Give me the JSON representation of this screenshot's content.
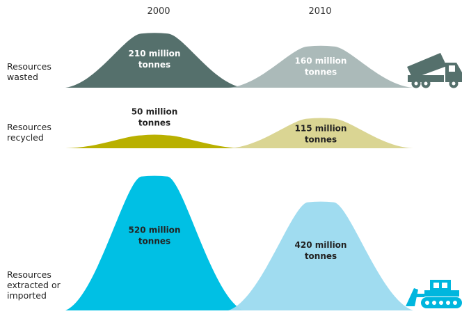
{
  "chart_data": {
    "type": "area",
    "categories": [
      "2000",
      "2010"
    ],
    "title": "",
    "rows": [
      {
        "label_lines": [
          "Resources",
          "wasted"
        ],
        "values": [
          210,
          160
        ],
        "value_lines": [
          [
            "210 million",
            "tonnes"
          ],
          [
            "160 million",
            "tonnes"
          ]
        ],
        "colors": [
          "#55706c",
          "#a8b8b7"
        ],
        "label_colors": [
          "#ffffff",
          "#ffffff"
        ],
        "icon": "dump-truck-icon"
      },
      {
        "label_lines": [
          "Resources",
          "recycled"
        ],
        "values": [
          50,
          115
        ],
        "value_lines": [
          [
            "50 million",
            "tonnes"
          ],
          [
            "115 million",
            "tonnes"
          ]
        ],
        "colors": [
          "#b9b000",
          "#d9d48f"
        ],
        "label_colors": [
          "#222222",
          "#222222"
        ],
        "icon": ""
      },
      {
        "label_lines": [
          "Resources",
          "extracted or",
          "imported"
        ],
        "values": [
          520,
          420
        ],
        "value_lines": [
          [
            "520 million",
            "tonnes"
          ],
          [
            "420 million",
            "tonnes"
          ]
        ],
        "colors": [
          "#00c0e4",
          "#9ddbf0"
        ],
        "label_colors": [
          "#222222",
          "#222222"
        ],
        "icon": "bulldozer-icon"
      }
    ]
  }
}
